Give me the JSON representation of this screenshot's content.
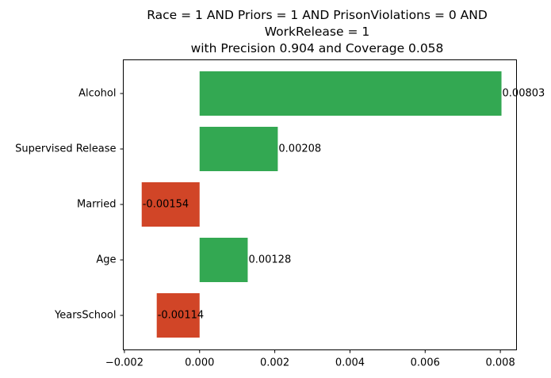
{
  "chart_data": {
    "type": "bar",
    "orientation": "horizontal",
    "title_lines": [
      "Race = 1 AND Priors = 1 AND PrisonViolations = 0 AND",
      "WorkRelease = 1",
      "with Precision 0.904 and Coverage 0.058"
    ],
    "categories": [
      "Alcohol",
      "Supervised Release",
      "Married",
      "Age",
      "YearsSchool"
    ],
    "values": [
      0.00803,
      0.00208,
      -0.00154,
      0.00128,
      -0.00114
    ],
    "value_labels": [
      "0.00803",
      "0.00208",
      "-0.00154",
      "0.00128",
      "-0.00114"
    ],
    "x_ticks": [
      -0.002,
      0.0,
      0.002,
      0.004,
      0.006,
      0.008
    ],
    "x_tick_labels": [
      "−0.002",
      "0.000",
      "0.002",
      "0.004",
      "0.006",
      "0.008"
    ],
    "xlim": [
      -0.00203,
      0.00843
    ],
    "xlabel": "",
    "ylabel": "",
    "grid": false,
    "colors": {
      "positive": "#33a852",
      "negative": "#d14527"
    }
  }
}
